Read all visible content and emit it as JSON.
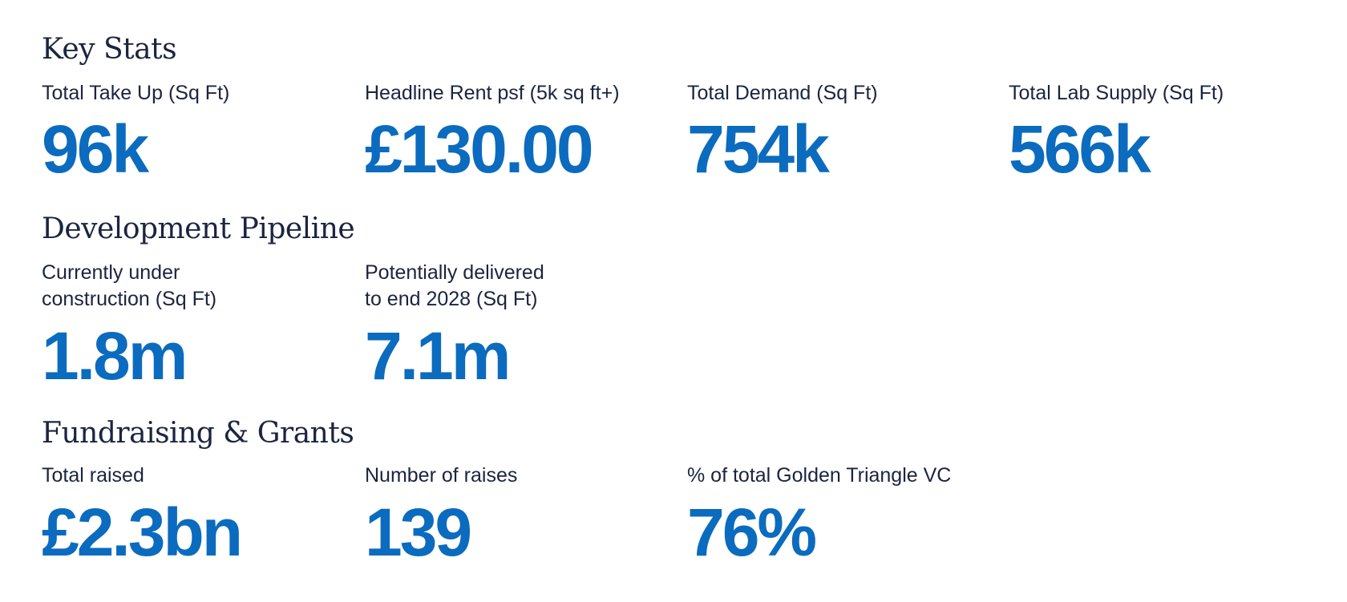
{
  "colors": {
    "heading": "#1b2440",
    "label": "#1b2440",
    "value": "#0b6bbf",
    "background": "#ffffff"
  },
  "sections": [
    {
      "title": "Key Stats",
      "stats": [
        {
          "label": "Total Take Up (Sq Ft)",
          "value": "96k"
        },
        {
          "label": "Headline Rent psf (5k sq ft+)",
          "value": "£130.00"
        },
        {
          "label": "Total Demand (Sq Ft)",
          "value": "754k"
        },
        {
          "label": "Total Lab Supply (Sq Ft)",
          "value": "566k"
        }
      ]
    },
    {
      "title": "Development Pipeline",
      "stats": [
        {
          "label": "Currently under\nconstruction (Sq Ft)",
          "value": "1.8m"
        },
        {
          "label": "Potentially delivered\nto end 2028 (Sq Ft)",
          "value": "7.1m"
        }
      ]
    },
    {
      "title": "Fundraising & Grants",
      "stats": [
        {
          "label": "Total raised",
          "value": "£2.3bn"
        },
        {
          "label": "Number of raises",
          "value": "139"
        },
        {
          "label": "% of total Golden Triangle VC",
          "value": "76%"
        }
      ]
    }
  ]
}
